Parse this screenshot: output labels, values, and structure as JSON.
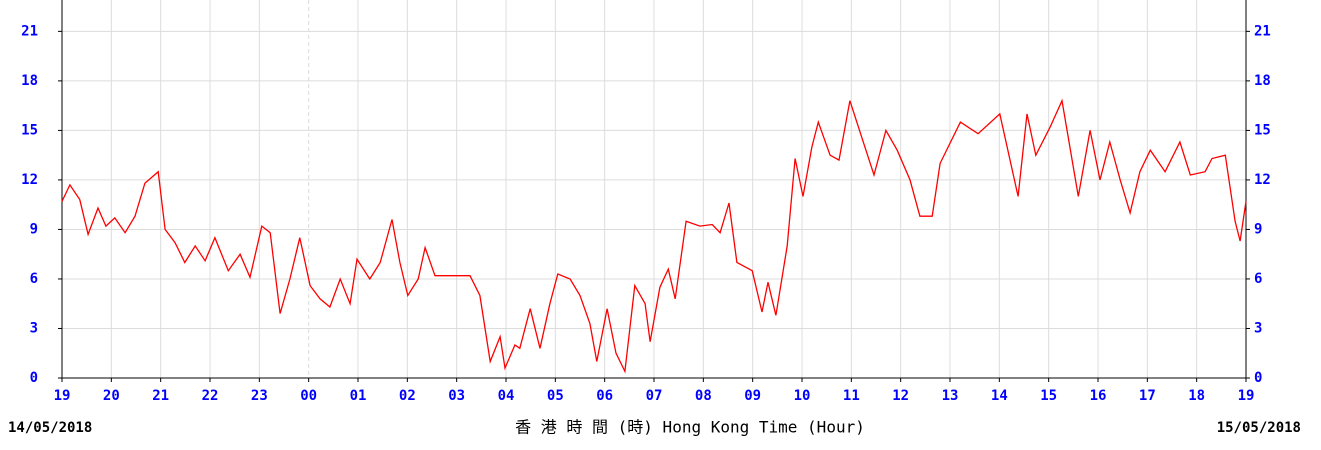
{
  "chart_data": {
    "type": "line",
    "x_label": "香 港 時 間 (時) Hong Kong Time (Hour)",
    "start_date": "14/05/2018",
    "end_date": "15/05/2018",
    "x": [
      0,
      0.16,
      0.36,
      0.53,
      0.73,
      0.89,
      1.07,
      1.28,
      1.48,
      1.68,
      1.95,
      2.09,
      2.29,
      2.49,
      2.7,
      2.9,
      3.1,
      3.37,
      3.61,
      3.81,
      4.05,
      4.22,
      4.42,
      4.62,
      4.82,
      5.03,
      5.23,
      5.43,
      5.64,
      5.84,
      5.98,
      6.24,
      6.45,
      6.69,
      6.85,
      7.01,
      7.22,
      7.36,
      7.56,
      7.87,
      8.27,
      8.47,
      8.68,
      8.88,
      8.98,
      9.18,
      9.28,
      9.49,
      9.69,
      9.89,
      10.05,
      10.3,
      10.5,
      10.7,
      10.84,
      11.05,
      11.23,
      11.41,
      11.61,
      11.82,
      11.92,
      12.12,
      12.29,
      12.43,
      12.65,
      12.93,
      13.18,
      13.34,
      13.52,
      13.68,
      13.99,
      14.19,
      14.31,
      14.47,
      14.7,
      14.86,
      15.02,
      15.2,
      15.33,
      15.57,
      15.75,
      15.97,
      16.22,
      16.46,
      16.7,
      16.93,
      17.19,
      17.39,
      17.64,
      17.8,
      18.21,
      18.57,
      19.01,
      19.38,
      19.56,
      19.74,
      20.03,
      20.27,
      20.6,
      20.84,
      21.04,
      21.24,
      21.45,
      21.65,
      21.85,
      22.06,
      22.36,
      22.66,
      22.87,
      23.17,
      23.31,
      23.58,
      23.78,
      23.88,
      24
    ],
    "series": [
      {
        "color": "#ff0000",
        "values": [
          10.7,
          11.7,
          10.8,
          8.7,
          10.3,
          9.2,
          9.7,
          8.8,
          9.8,
          11.8,
          12.5,
          9.0,
          8.2,
          7.0,
          8.0,
          7.1,
          8.5,
          6.5,
          7.5,
          6.1,
          9.2,
          8.8,
          3.9,
          6.0,
          8.5,
          5.6,
          4.8,
          4.3,
          6.0,
          4.5,
          7.2,
          6.0,
          7.0,
          9.6,
          7.0,
          5.0,
          6.0,
          7.9,
          6.2,
          6.2,
          6.2,
          5.0,
          1.0,
          2.5,
          0.6,
          2.0,
          1.8,
          4.2,
          1.8,
          4.5,
          6.3,
          6.0,
          5.0,
          3.3,
          1.0,
          4.2,
          1.5,
          0.4,
          5.6,
          4.5,
          2.2,
          5.5,
          6.6,
          4.8,
          9.5,
          9.2,
          9.3,
          8.8,
          10.6,
          7.0,
          6.5,
          4.0,
          5.8,
          3.8,
          8.0,
          13.3,
          11.0,
          14.0,
          15.5,
          13.5,
          13.2,
          16.8,
          14.5,
          12.3,
          15.0,
          13.8,
          12.0,
          9.8,
          9.8,
          13.0,
          15.5,
          14.8,
          16.0,
          11.0,
          16.0,
          13.5,
          15.2,
          16.8,
          11.0,
          15.0,
          12.0,
          14.3,
          12.0,
          10.0,
          12.5,
          13.8,
          12.5,
          14.3,
          12.3,
          12.5,
          13.3,
          13.5,
          9.5,
          8.3,
          10.7
        ]
      }
    ],
    "xlim": [
      0,
      24
    ],
    "xticks": [
      {
        "value": 0,
        "label": "19"
      },
      {
        "value": 1,
        "label": "20"
      },
      {
        "value": 2,
        "label": "21"
      },
      {
        "value": 3,
        "label": "22"
      },
      {
        "value": 4,
        "label": "23"
      },
      {
        "value": 5,
        "label": "00"
      },
      {
        "value": 6,
        "label": "01"
      },
      {
        "value": 7,
        "label": "02"
      },
      {
        "value": 8,
        "label": "03"
      },
      {
        "value": 9,
        "label": "04"
      },
      {
        "value": 10,
        "label": "05"
      },
      {
        "value": 11,
        "label": "06"
      },
      {
        "value": 12,
        "label": "07"
      },
      {
        "value": 13,
        "label": "08"
      },
      {
        "value": 14,
        "label": "09"
      },
      {
        "value": 15,
        "label": "10"
      },
      {
        "value": 16,
        "label": "11"
      },
      {
        "value": 17,
        "label": "12"
      },
      {
        "value": 18,
        "label": "13"
      },
      {
        "value": 19,
        "label": "14"
      },
      {
        "value": 20,
        "label": "15"
      },
      {
        "value": 21,
        "label": "16"
      },
      {
        "value": 22,
        "label": "17"
      },
      {
        "value": 23,
        "label": "18"
      },
      {
        "value": 24,
        "label": "19"
      }
    ],
    "ylim": [
      0,
      22.9
    ],
    "yticks": [
      0,
      3,
      6,
      9,
      12,
      15,
      18,
      21
    ],
    "grid": true
  }
}
